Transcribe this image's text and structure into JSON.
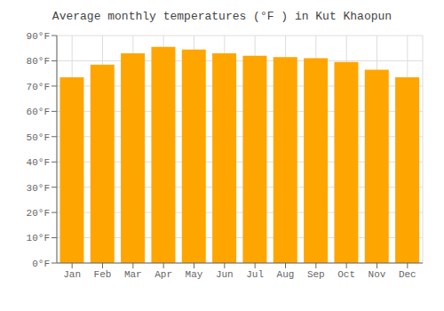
{
  "chart_data": {
    "type": "bar",
    "title": "Average monthly temperatures (°F ) in Kut Khaopun",
    "categories": [
      "Jan",
      "Feb",
      "Mar",
      "Apr",
      "May",
      "Jun",
      "Jul",
      "Aug",
      "Sep",
      "Oct",
      "Nov",
      "Dec"
    ],
    "values": [
      73.5,
      78.5,
      83.0,
      85.5,
      84.5,
      83.0,
      82.0,
      81.5,
      81.0,
      79.5,
      76.5,
      73.5
    ],
    "color": "#FFA500",
    "ylim": [
      0,
      90
    ],
    "yticks": [
      {
        "value": 0,
        "label": "0°F"
      },
      {
        "value": 10,
        "label": "10°F"
      },
      {
        "value": 20,
        "label": "20°F"
      },
      {
        "value": 30,
        "label": "30°F"
      },
      {
        "value": 40,
        "label": "40°F"
      },
      {
        "value": 50,
        "label": "50°F"
      },
      {
        "value": 60,
        "label": "60°F"
      },
      {
        "value": 70,
        "label": "70°F"
      },
      {
        "value": 80,
        "label": "80°F"
      },
      {
        "value": 90,
        "label": "90°F"
      }
    ],
    "grid": true
  }
}
